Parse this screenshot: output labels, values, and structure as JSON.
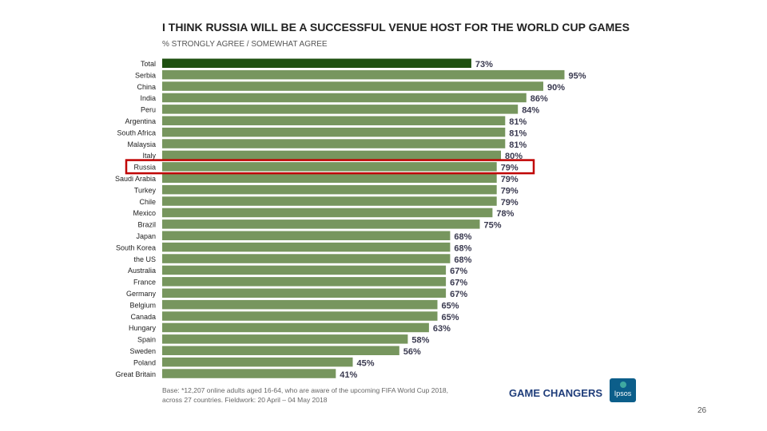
{
  "header": {
    "title": "I THINK RUSSIA WILL BE A SUCCESSFUL VENUE HOST FOR THE WORLD CUP GAMES",
    "subtitle": "% STRONGLY AGREE / SOMEWHAT AGREE"
  },
  "chart_data": {
    "type": "bar",
    "orientation": "horizontal",
    "title": "I THINK RUSSIA WILL BE A SUCCESSFUL VENUE HOST FOR THE WORLD CUP GAMES",
    "subtitle": "% STRONGLY AGREE / SOMEWHAT AGREE",
    "unit": "%",
    "categories": [
      "Total",
      "Serbia",
      "China",
      "India",
      "Peru",
      "Argentina",
      "South Africa",
      "Malaysia",
      "Italy",
      "Russia",
      "Saudi Arabia",
      "Turkey",
      "Chile",
      "Mexico",
      "Brazil",
      "Japan",
      "South Korea",
      "the US",
      "Australia",
      "France",
      "Germany",
      "Belgium",
      "Canada",
      "Hungary",
      "Spain",
      "Sweden",
      "Poland",
      "Great Britain"
    ],
    "values": [
      73,
      95,
      90,
      86,
      84,
      81,
      81,
      81,
      80,
      79,
      79,
      79,
      79,
      78,
      75,
      68,
      68,
      68,
      67,
      67,
      67,
      65,
      65,
      63,
      58,
      56,
      45,
      41
    ],
    "highlight_category": "Total",
    "outlined_category": "Russia",
    "xlim": [
      0,
      100
    ],
    "colors": {
      "bar": "#77965e",
      "highlight": "#1e5010",
      "outline": "#c00000",
      "label": "#3a3a50"
    }
  },
  "footer": {
    "note_line1": "Base: *12,207 online adults aged 16-64, who are aware of the upcoming FIFA World Cup 2018,",
    "note_line2": "across 27 countries. Fieldwork:  20 April – 04 May 2018",
    "brand": "GAME CHANGERS",
    "logo_text": "Ipsos",
    "page_number": "26"
  }
}
